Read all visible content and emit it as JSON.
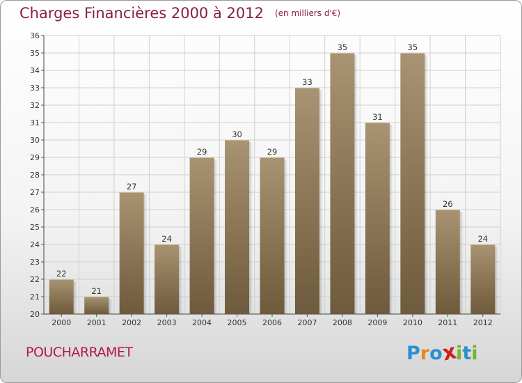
{
  "header": {
    "title": "Charges Financières 2000 à 2012",
    "unit": "(en milliers d'€)"
  },
  "footer": {
    "commune": "POUCHARRAMET",
    "logo_letters": [
      "P",
      "r",
      "o",
      "x",
      "i",
      "t",
      "i"
    ],
    "logo_colors": [
      "#2b8fd1",
      "#e98a16",
      "#2b8fd1",
      "#cc1f1f",
      "#71b62e",
      "#2b8fd1",
      "#71b62e"
    ]
  },
  "colors": {
    "bar_light": "#a89472",
    "bar_dark": "#6e5a3c",
    "grid": "#cfcfcf",
    "title": "#8a1d4a",
    "commune": "#b5174c"
  },
  "chart_data": {
    "type": "bar",
    "categories": [
      "2000",
      "2001",
      "2002",
      "2003",
      "2004",
      "2005",
      "2006",
      "2007",
      "2008",
      "2009",
      "2010",
      "2011",
      "2012"
    ],
    "values": [
      22,
      21,
      27,
      24,
      29,
      30,
      29,
      33,
      35,
      31,
      35,
      26,
      24
    ],
    "ylim": [
      20,
      36
    ],
    "yticks": [
      20,
      21,
      22,
      23,
      24,
      25,
      26,
      27,
      28,
      29,
      30,
      31,
      32,
      33,
      34,
      35,
      36
    ],
    "grid": true,
    "data_labels": true
  }
}
